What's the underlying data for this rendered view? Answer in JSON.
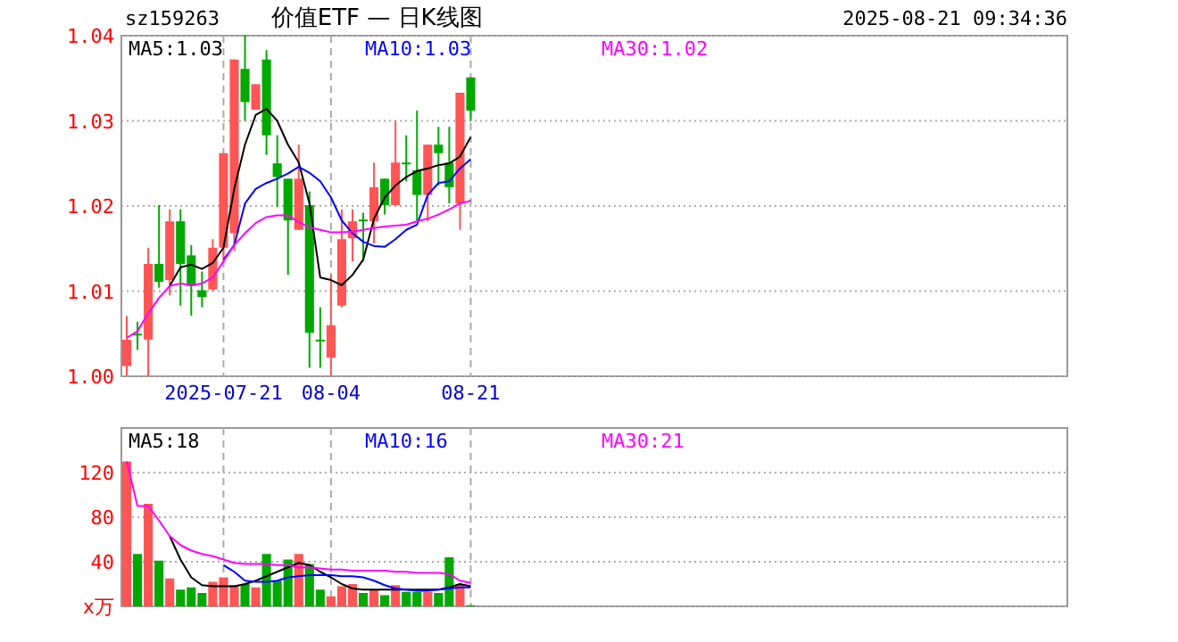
{
  "chart_data": [
    {
      "type": "candlestick",
      "title": "价值ETF — 日K线图",
      "annotations": [
        "sz159263",
        "2025-08-21 09:34:36"
      ],
      "categories": [
        null,
        null,
        null,
        null,
        null,
        null,
        null,
        null,
        null,
        "2025-07-21",
        null,
        null,
        null,
        null,
        null,
        null,
        null,
        null,
        null,
        "08-04",
        null,
        null,
        null,
        null,
        null,
        null,
        null,
        null,
        null,
        null,
        null,
        null,
        "08-21",
        null,
        null,
        null,
        null,
        null,
        null,
        null,
        null,
        null,
        null,
        null,
        null,
        null,
        null,
        null,
        null,
        null,
        null,
        null,
        null,
        null,
        null,
        null,
        null,
        null,
        null,
        null,
        null,
        null,
        null,
        null,
        null,
        null,
        null,
        null,
        null,
        null,
        null,
        null,
        null,
        null,
        null,
        null,
        null,
        null,
        null,
        null,
        null,
        null,
        null,
        null,
        null,
        null,
        null,
        null
      ],
      "ohlc": [
        [
          1.0012,
          1.0071,
          1.0001,
          1.0043
        ],
        [
          1.005,
          1.0064,
          1.0031,
          1.0049
        ],
        [
          1.0043,
          1.0151,
          1.0,
          1.0132
        ],
        [
          1.0132,
          1.0201,
          1.0104,
          1.0111
        ],
        [
          1.0113,
          1.0196,
          1.0095,
          1.0182
        ],
        [
          1.0182,
          1.0196,
          1.0083,
          1.0132
        ],
        [
          1.0142,
          1.0154,
          1.0071,
          1.0106
        ],
        [
          1.0101,
          1.0123,
          1.0081,
          1.0093
        ],
        [
          1.0102,
          1.0161,
          1.01,
          1.0151
        ],
        [
          1.0151,
          1.0262,
          1.0133,
          1.0262
        ],
        [
          1.0168,
          1.0372,
          1.0147,
          1.0372
        ],
        [
          1.0361,
          1.0401,
          1.03,
          1.0322
        ],
        [
          1.0313,
          1.0343,
          1.0313,
          1.0343
        ],
        [
          1.0372,
          1.0383,
          1.026,
          1.0283
        ],
        [
          1.025,
          1.0283,
          1.0199,
          1.0234
        ],
        [
          1.0232,
          1.0232,
          1.0119,
          1.0183
        ],
        [
          1.0172,
          1.0272,
          1.0172,
          1.0232
        ],
        [
          1.0201,
          1.0217,
          1.001,
          1.0051
        ],
        [
          1.0043,
          1.0081,
          1.001,
          1.0041
        ],
        [
          1.0022,
          1.0119,
          1.0,
          1.006
        ],
        [
          1.0083,
          1.0196,
          1.0081,
          1.0161
        ],
        [
          1.0162,
          1.0196,
          1.0135,
          1.0182
        ],
        [
          1.0184,
          1.0192,
          1.0135,
          1.0182
        ],
        [
          1.0182,
          1.0251,
          1.0156,
          1.0222
        ],
        [
          1.0232,
          1.0232,
          1.019,
          1.0201
        ],
        [
          1.0201,
          1.03,
          1.0201,
          1.0251
        ],
        [
          1.0251,
          1.0283,
          1.0229,
          1.0249
        ],
        [
          1.0242,
          1.0312,
          1.0182,
          1.0213
        ],
        [
          1.0213,
          1.0272,
          1.0182,
          1.0272
        ],
        [
          1.0272,
          1.0293,
          1.0224,
          1.0262
        ],
        [
          1.0251,
          1.0293,
          1.0203,
          1.0222
        ],
        [
          1.0203,
          1.0333,
          1.0172,
          1.0333
        ],
        [
          1.0351,
          1.0351,
          1.03,
          1.0312
        ],
        null,
        null,
        null,
        null,
        null,
        null,
        null,
        null,
        null,
        null,
        null,
        null,
        null,
        null,
        null,
        null,
        null,
        null,
        null,
        null,
        null,
        null,
        null,
        null,
        null,
        null,
        null,
        null,
        null,
        null,
        null,
        null,
        null,
        null,
        null,
        null,
        null,
        null,
        null,
        null,
        null,
        null,
        null,
        null,
        null,
        null,
        null,
        null,
        null,
        null,
        null,
        null,
        null,
        null,
        null
      ],
      "colors": [
        "#ff5555",
        "#00a800",
        "#ff5555",
        "#00a800",
        "#ff5555",
        "#00a800",
        "#00a800",
        "#00a800",
        "#ff5555",
        "#ff5555",
        "#ff5555",
        "#00a800",
        "#ff5555",
        "#00a800",
        "#00a800",
        "#00a800",
        "#ff5555",
        "#00a800",
        "#00a800",
        "#ff5555",
        "#ff5555",
        "#ff5555",
        "#00a800",
        "#ff5555",
        "#00a800",
        "#ff5555",
        "#00a800",
        "#00a800",
        "#ff5555",
        "#00a800",
        "#00a800",
        "#ff5555",
        "#00a800",
        null,
        null,
        null,
        null,
        null,
        null,
        null,
        null,
        null,
        null,
        null,
        null,
        null,
        null,
        null,
        null,
        null,
        null,
        null,
        null,
        null,
        null,
        null,
        null,
        null,
        null,
        null,
        null,
        null,
        null,
        null,
        null,
        null,
        null,
        null,
        null,
        null,
        null,
        null,
        null,
        null,
        null,
        null,
        null,
        null,
        null,
        null,
        null,
        null,
        null,
        null,
        null,
        null,
        null,
        null
      ],
      "series": [
        {
          "name": "MA5:1.03",
          "type": "line",
          "color": "#000000",
          "values": [
            null,
            null,
            null,
            null,
            1.0106,
            1.0128,
            1.0131,
            1.0126,
            1.0133,
            1.0151,
            1.022,
            1.0272,
            1.0307,
            1.0314,
            1.03,
            1.0272,
            1.0251,
            1.0203,
            1.0116,
            1.0113,
            1.0107,
            1.0119,
            1.0137,
            1.0185,
            1.021,
            1.0224,
            1.0234,
            1.0241,
            1.0244,
            1.0248,
            1.025,
            1.0258,
            1.0281,
            null,
            null,
            null,
            null,
            null,
            null,
            null,
            null,
            null,
            null,
            null,
            null,
            null,
            null,
            null,
            null,
            null,
            null,
            null,
            null,
            null,
            null,
            null,
            null,
            null,
            null,
            null,
            null,
            null,
            null,
            null,
            null,
            null,
            null,
            null,
            null,
            null,
            null,
            null,
            null,
            null,
            null,
            null,
            null,
            null,
            null,
            null,
            null,
            null,
            null,
            null,
            null,
            null,
            null,
            null
          ]
        },
        {
          "name": "MA10:1.03",
          "type": "line",
          "color": "#0000ff",
          "values": [
            null,
            null,
            null,
            null,
            null,
            null,
            null,
            null,
            null,
            1.0137,
            1.0154,
            1.0203,
            1.022,
            1.0227,
            1.0232,
            1.0238,
            1.0246,
            1.0239,
            1.0229,
            1.021,
            1.0183,
            1.0168,
            1.0158,
            1.0153,
            1.0152,
            1.0161,
            1.0172,
            1.0178,
            1.0213,
            1.0227,
            1.0229,
            1.0244,
            1.0255,
            null,
            null,
            null,
            null,
            null,
            null,
            null,
            null,
            null,
            null,
            null,
            null,
            null,
            null,
            null,
            null,
            null,
            null,
            null,
            null,
            null,
            null,
            null,
            null,
            null,
            null,
            null,
            null,
            null,
            null,
            null,
            null,
            null,
            null,
            null,
            null,
            null,
            null,
            null,
            null,
            null,
            null,
            null,
            null,
            null,
            null,
            null,
            null,
            null,
            null,
            null,
            null,
            null,
            null,
            null
          ]
        },
        {
          "name": "MA30:1.02",
          "type": "line",
          "color": "#ff00ff",
          "values": [
            1.0045,
            1.0053,
            1.0074,
            1.0092,
            1.0106,
            1.0109,
            1.0107,
            1.0109,
            1.0116,
            1.0135,
            1.0154,
            1.0168,
            1.018,
            1.0187,
            1.0189,
            1.0189,
            1.0181,
            1.0175,
            1.0172,
            1.0169,
            1.0169,
            1.017,
            1.0172,
            1.0174,
            1.0176,
            1.0177,
            1.0178,
            1.0182,
            1.0185,
            1.019,
            1.0196,
            1.0203,
            1.0206,
            null,
            null,
            null,
            null,
            null,
            null,
            null,
            null,
            null,
            null,
            null,
            null,
            null,
            null,
            null,
            null,
            null,
            null,
            null,
            null,
            null,
            null,
            null,
            null,
            null,
            null,
            null,
            null,
            null,
            null,
            null,
            null,
            null,
            null,
            null,
            null,
            null,
            null,
            null,
            null,
            null,
            null,
            null,
            null,
            null,
            null,
            null,
            null,
            null,
            null,
            null,
            null,
            null,
            null,
            null
          ]
        }
      ],
      "ylim": [
        1.0,
        1.04
      ],
      "yticks": [
        {
          "value": 1.0,
          "label": "1.00"
        },
        {
          "value": 1.01,
          "label": "1.01"
        },
        {
          "value": 1.02,
          "label": "1.02"
        },
        {
          "value": 1.03,
          "label": "1.03"
        },
        {
          "value": 1.04,
          "label": "1.04"
        }
      ],
      "grid": true,
      "legend": "top"
    },
    {
      "type": "bar",
      "categories": [
        null,
        null,
        null,
        null,
        null,
        null,
        null,
        null,
        null,
        null,
        null,
        null,
        null,
        null,
        null,
        null,
        null,
        null,
        null,
        null,
        null,
        null,
        null,
        null,
        null,
        null,
        null,
        null,
        null,
        null,
        null,
        null,
        null,
        null,
        null,
        null,
        null,
        null,
        null,
        null,
        null,
        null,
        null,
        null,
        null,
        null,
        null,
        null,
        null,
        null,
        null,
        null,
        null,
        null,
        null,
        null,
        null,
        null,
        null,
        null,
        null,
        null,
        null,
        null,
        null,
        null,
        null,
        null,
        null,
        null,
        null,
        null,
        null,
        null,
        null,
        null,
        null,
        null,
        null,
        null,
        null,
        null,
        null,
        null,
        null,
        null,
        null,
        null
      ],
      "series": [
        {
          "type": "bar",
          "colors": [
            "#ff5555",
            "#00a800",
            "#ff5555",
            "#00a800",
            "#ff5555",
            "#00a800",
            "#00a800",
            "#00a800",
            "#ff5555",
            "#ff5555",
            "#ff5555",
            "#00a800",
            "#ff5555",
            "#00a800",
            "#00a800",
            "#00a800",
            "#ff5555",
            "#00a800",
            "#00a800",
            "#ff5555",
            "#ff5555",
            "#ff5555",
            "#00a800",
            "#ff5555",
            "#00a800",
            "#ff5555",
            "#00a800",
            "#00a800",
            "#ff5555",
            "#00a800",
            "#00a800",
            "#ff5555",
            "#00a800",
            null,
            null,
            null,
            null,
            null,
            null,
            null,
            null,
            null,
            null,
            null,
            null,
            null,
            null,
            null,
            null,
            null,
            null,
            null,
            null,
            null,
            null,
            null,
            null,
            null,
            null,
            null,
            null,
            null,
            null,
            null,
            null,
            null,
            null,
            null,
            null,
            null,
            null,
            null,
            null,
            null,
            null,
            null,
            null,
            null,
            null,
            null,
            null,
            null,
            null,
            null,
            null,
            null,
            null,
            null
          ],
          "values": [
            130,
            47,
            92,
            41,
            25,
            15,
            17,
            12,
            22,
            26,
            19,
            20,
            17,
            47,
            23,
            42,
            47,
            38,
            15,
            9,
            18,
            20,
            12,
            15,
            10,
            19,
            13,
            13,
            13,
            12,
            44,
            20,
            1,
            null,
            null,
            null,
            null,
            null,
            null,
            null,
            null,
            null,
            null,
            null,
            null,
            null,
            null,
            null,
            null,
            null,
            null,
            null,
            null,
            null,
            null,
            null,
            null,
            null,
            null,
            null,
            null,
            null,
            null,
            null,
            null,
            null,
            null,
            null,
            null,
            null,
            null,
            null,
            null,
            null,
            null,
            null,
            null,
            null,
            null,
            null,
            null,
            null,
            null,
            null,
            null,
            null,
            null,
            null
          ]
        },
        {
          "name": "MA5:18",
          "type": "line",
          "color": "#000000",
          "values": [
            null,
            null,
            null,
            null,
            63,
            42,
            26,
            19,
            18,
            18,
            18,
            20,
            23,
            27,
            31,
            35,
            39,
            37,
            31,
            26,
            20,
            16,
            15,
            15,
            15,
            15,
            15,
            15,
            15,
            15,
            17,
            20,
            18,
            null,
            null,
            null,
            null,
            null,
            null,
            null,
            null,
            null,
            null,
            null,
            null,
            null,
            null,
            null,
            null,
            null,
            null,
            null,
            null,
            null,
            null,
            null,
            null,
            null,
            null,
            null,
            null,
            null,
            null,
            null,
            null,
            null,
            null,
            null,
            null,
            null,
            null,
            null,
            null,
            null,
            null,
            null,
            null,
            null,
            null,
            null,
            null,
            null,
            null,
            null,
            null,
            null,
            null,
            null
          ]
        },
        {
          "name": "MA10:16",
          "type": "line",
          "color": "#0000ff",
          "values": [
            null,
            null,
            null,
            null,
            null,
            null,
            null,
            null,
            null,
            37,
            31,
            23,
            22,
            22,
            23,
            26,
            27,
            28,
            28,
            28,
            27,
            27,
            26,
            23,
            19,
            16,
            15,
            14,
            14,
            15,
            16,
            17,
            17,
            null,
            null,
            null,
            null,
            null,
            null,
            null,
            null,
            null,
            null,
            null,
            null,
            null,
            null,
            null,
            null,
            null,
            null,
            null,
            null,
            null,
            null,
            null,
            null,
            null,
            null,
            null,
            null,
            null,
            null,
            null,
            null,
            null,
            null,
            null,
            null,
            null,
            null,
            null,
            null,
            null,
            null,
            null,
            null,
            null,
            null,
            null,
            null,
            null,
            null,
            null,
            null,
            null,
            null,
            null
          ]
        },
        {
          "name": "MA30:21",
          "type": "line",
          "color": "#ff00ff",
          "values": [
            130,
            90,
            90,
            77,
            63,
            55,
            50,
            47,
            45,
            42,
            39,
            38,
            38,
            38,
            37,
            37,
            35,
            35,
            34,
            33,
            33,
            32,
            32,
            32,
            32,
            31,
            31,
            30,
            30,
            30,
            29,
            23,
            21,
            null,
            null,
            null,
            null,
            null,
            null,
            null,
            null,
            null,
            null,
            null,
            null,
            null,
            null,
            null,
            null,
            null,
            null,
            null,
            null,
            null,
            null,
            null,
            null,
            null,
            null,
            null,
            null,
            null,
            null,
            null,
            null,
            null,
            null,
            null,
            null,
            null,
            null,
            null,
            null,
            null,
            null,
            null,
            null,
            null,
            null,
            null,
            null,
            null,
            null,
            null,
            null,
            null,
            null,
            null
          ]
        }
      ],
      "ylim": [
        0,
        160
      ],
      "yticks": [
        {
          "value": 0,
          "label": "x万"
        },
        40,
        80,
        120
      ],
      "grid": true,
      "legend": "top",
      "tick_labels": "y"
    }
  ]
}
